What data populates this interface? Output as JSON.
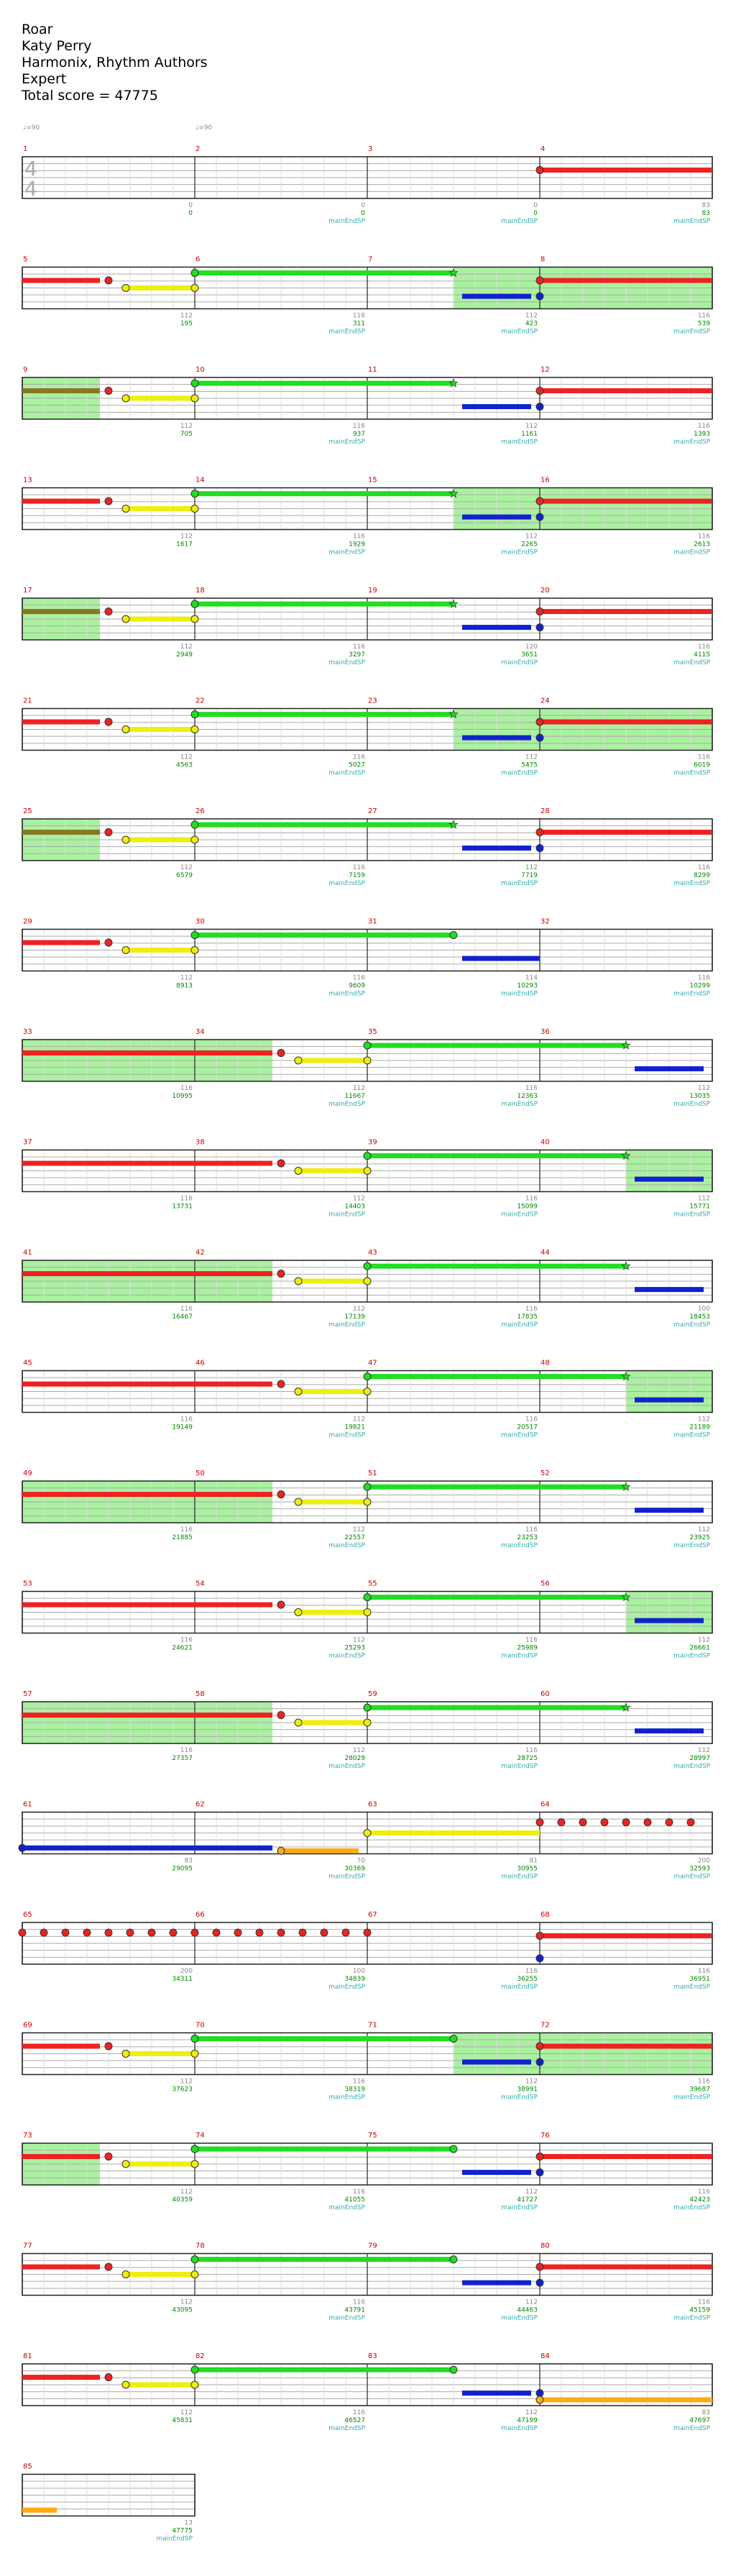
{
  "song": {
    "title": "Roar",
    "artist": "Katy Perry",
    "charter": "Harmonix, Rhythm Authors",
    "difficulty": "Expert",
    "total_score_label": "Total score = 47775"
  },
  "bpm_markers": [
    {
      "label": "♩=90",
      "measure": 1
    },
    {
      "label": "♩=90",
      "measure": 2
    }
  ],
  "colors": {
    "green": "#22dd22",
    "red": "#ee2222",
    "yellow": "#eeee11",
    "blue": "#1122cc",
    "orange": "#ffaa11",
    "sp_highlight": "#aaf0a0",
    "sp_sustain": "#887722",
    "sp_blue": "#116688",
    "measure_num": "#cc0000",
    "score_text": "#008800",
    "mult_text": "#888888",
    "sp_text": "#33aaaa"
  },
  "rows": [
    {
      "measures": [
        1,
        2,
        3,
        4
      ],
      "scores": [
        "0",
        "0",
        "0",
        "83"
      ],
      "mults": [
        "0",
        "0",
        "0",
        "83"
      ],
      "sp": [
        "",
        "mainEndSP",
        "mainEndSP",
        "mainEndSP"
      ],
      "hl": []
    },
    {
      "measures": [
        5,
        6,
        7,
        8
      ],
      "scores": [
        "195",
        "311",
        "423",
        "539"
      ],
      "mults": [
        "112",
        "116",
        "112",
        "116"
      ],
      "sp": [
        "",
        "mainEndSP",
        "mainEndSP",
        "mainEndSP"
      ],
      "hl": [
        [
          2.5,
          4
        ]
      ]
    },
    {
      "measures": [
        9,
        10,
        11,
        12
      ],
      "scores": [
        "705",
        "937",
        "1161",
        "1393"
      ],
      "mults": [
        "112",
        "116",
        "112",
        "116"
      ],
      "sp": [
        "",
        "mainEndSP",
        "mainEndSP",
        "mainEndSP"
      ],
      "hl": [
        [
          0,
          0.45
        ]
      ]
    },
    {
      "measures": [
        13,
        14,
        15,
        16
      ],
      "scores": [
        "1617",
        "1929",
        "2265",
        "2613"
      ],
      "mults": [
        "112",
        "116",
        "112",
        "116"
      ],
      "sp": [
        "",
        "mainEndSP",
        "mainEndSP",
        "mainEndSP"
      ],
      "hl": [
        [
          2.5,
          4
        ]
      ]
    },
    {
      "measures": [
        17,
        18,
        19,
        20
      ],
      "scores": [
        "2949",
        "3297",
        "3651",
        "4115"
      ],
      "mults": [
        "112",
        "116",
        "120",
        "116"
      ],
      "sp": [
        "",
        "mainEndSP",
        "mainEndSP",
        "mainEndSP"
      ],
      "hl": [
        [
          0,
          0.45
        ]
      ]
    },
    {
      "measures": [
        21,
        22,
        23,
        24
      ],
      "scores": [
        "4563",
        "5027",
        "5475",
        "6019"
      ],
      "mults": [
        "112",
        "116",
        "112",
        "116"
      ],
      "sp": [
        "",
        "mainEndSP",
        "mainEndSP",
        "mainEndSP"
      ],
      "hl": [
        [
          2.5,
          4
        ]
      ]
    },
    {
      "measures": [
        25,
        26,
        27,
        28
      ],
      "scores": [
        "6579",
        "7159",
        "7719",
        "8299"
      ],
      "mults": [
        "112",
        "116",
        "112",
        "116"
      ],
      "sp": [
        "",
        "mainEndSP",
        "mainEndSP",
        "mainEndSP"
      ],
      "hl": [
        [
          0,
          0.45
        ]
      ]
    },
    {
      "measures": [
        29,
        30,
        31,
        32
      ],
      "scores": [
        "8913",
        "9609",
        "10293",
        "10299"
      ],
      "mults": [
        "112",
        "116",
        "114",
        "116"
      ],
      "sp": [
        "",
        "mainEndSP",
        "mainEndSP",
        "mainEndSP"
      ],
      "hl": []
    },
    {
      "measures": [
        33,
        34,
        35,
        36
      ],
      "scores": [
        "10995",
        "11667",
        "12363",
        "13035"
      ],
      "mults": [
        "116",
        "112",
        "116",
        "112"
      ],
      "sp": [
        "",
        "mainEndSP",
        "mainEndSP",
        "mainEndSP"
      ],
      "hl": [
        [
          0,
          1.45
        ]
      ]
    },
    {
      "measures": [
        37,
        38,
        39,
        40
      ],
      "scores": [
        "13731",
        "14403",
        "15099",
        "15771"
      ],
      "mults": [
        "116",
        "112",
        "116",
        "112"
      ],
      "sp": [
        "",
        "mainEndSP",
        "mainEndSP",
        "mainEndSP"
      ],
      "hl": [
        [
          3.5,
          4
        ]
      ]
    },
    {
      "measures": [
        41,
        42,
        43,
        44
      ],
      "scores": [
        "16467",
        "17139",
        "17835",
        "18453"
      ],
      "mults": [
        "116",
        "112",
        "116",
        "100"
      ],
      "sp": [
        "",
        "mainEndSP",
        "mainEndSP",
        "mainEndSP"
      ],
      "hl": [
        [
          0,
          1.45
        ]
      ]
    },
    {
      "measures": [
        45,
        46,
        47,
        48
      ],
      "scores": [
        "19149",
        "19821",
        "20517",
        "21189"
      ],
      "mults": [
        "116",
        "112",
        "116",
        "112"
      ],
      "sp": [
        "",
        "mainEndSP",
        "mainEndSP",
        "mainEndSP"
      ],
      "hl": [
        [
          3.5,
          4
        ]
      ]
    },
    {
      "measures": [
        49,
        50,
        51,
        52
      ],
      "scores": [
        "21885",
        "22557",
        "23253",
        "23925"
      ],
      "mults": [
        "116",
        "112",
        "116",
        "112"
      ],
      "sp": [
        "",
        "mainEndSP",
        "mainEndSP",
        "mainEndSP"
      ],
      "hl": [
        [
          0,
          1.45
        ]
      ]
    },
    {
      "measures": [
        53,
        54,
        55,
        56
      ],
      "scores": [
        "24621",
        "25293",
        "25989",
        "26661"
      ],
      "mults": [
        "116",
        "112",
        "116",
        "112"
      ],
      "sp": [
        "",
        "mainEndSP",
        "mainEndSP",
        "mainEndSP"
      ],
      "hl": [
        [
          3.5,
          4
        ]
      ]
    },
    {
      "measures": [
        57,
        58,
        59,
        60
      ],
      "scores": [
        "27357",
        "28029",
        "28725",
        "28997"
      ],
      "mults": [
        "116",
        "112",
        "116",
        "112"
      ],
      "sp": [
        "",
        "mainEndSP",
        "mainEndSP",
        "mainEndSP"
      ],
      "hl": [
        [
          0,
          1.45
        ]
      ]
    },
    {
      "measures": [
        61,
        62,
        63,
        64
      ],
      "scores": [
        "29095",
        "30369",
        "30955",
        "32593"
      ],
      "mults": [
        "83",
        "70",
        "81",
        "200"
      ],
      "sp": [
        "",
        "mainEndSP",
        "mainEndSP",
        "mainEndSP"
      ],
      "hl": []
    },
    {
      "measures": [
        65,
        66,
        67,
        68
      ],
      "scores": [
        "34311",
        "34839",
        "36255",
        "36951"
      ],
      "mults": [
        "200",
        "100",
        "116",
        "116"
      ],
      "sp": [
        "",
        "mainEndSP",
        "mainEndSP",
        "mainEndSP"
      ],
      "hl": []
    },
    {
      "measures": [
        69,
        70,
        71,
        72
      ],
      "scores": [
        "37623",
        "38319",
        "38991",
        "39687"
      ],
      "mults": [
        "112",
        "116",
        "112",
        "116"
      ],
      "sp": [
        "",
        "mainEndSP",
        "mainEndSP",
        "mainEndSP"
      ],
      "hl": [
        [
          2.5,
          4
        ]
      ]
    },
    {
      "measures": [
        73,
        74,
        75,
        76
      ],
      "scores": [
        "40359",
        "41055",
        "41727",
        "42423"
      ],
      "mults": [
        "112",
        "116",
        "112",
        "116"
      ],
      "sp": [
        "",
        "mainEndSP",
        "mainEndSP",
        "mainEndSP"
      ],
      "hl": [
        [
          0,
          0.45
        ]
      ]
    },
    {
      "measures": [
        77,
        78,
        79,
        80
      ],
      "scores": [
        "43095",
        "43791",
        "44463",
        "45159"
      ],
      "mults": [
        "112",
        "116",
        "112",
        "116"
      ],
      "sp": [
        "",
        "mainEndSP",
        "mainEndSP",
        "mainEndSP"
      ],
      "hl": []
    },
    {
      "measures": [
        81,
        82,
        83,
        84
      ],
      "scores": [
        "45831",
        "46527",
        "47199",
        "47697"
      ],
      "mults": [
        "112",
        "116",
        "112",
        "83"
      ],
      "sp": [
        "",
        "mainEndSP",
        "mainEndSP",
        "mainEndSP"
      ],
      "hl": []
    },
    {
      "measures": [
        85
      ],
      "scores": [
        "47775"
      ],
      "mults": [
        "13"
      ],
      "sp": [
        "mainEndSP"
      ],
      "hl": []
    }
  ]
}
